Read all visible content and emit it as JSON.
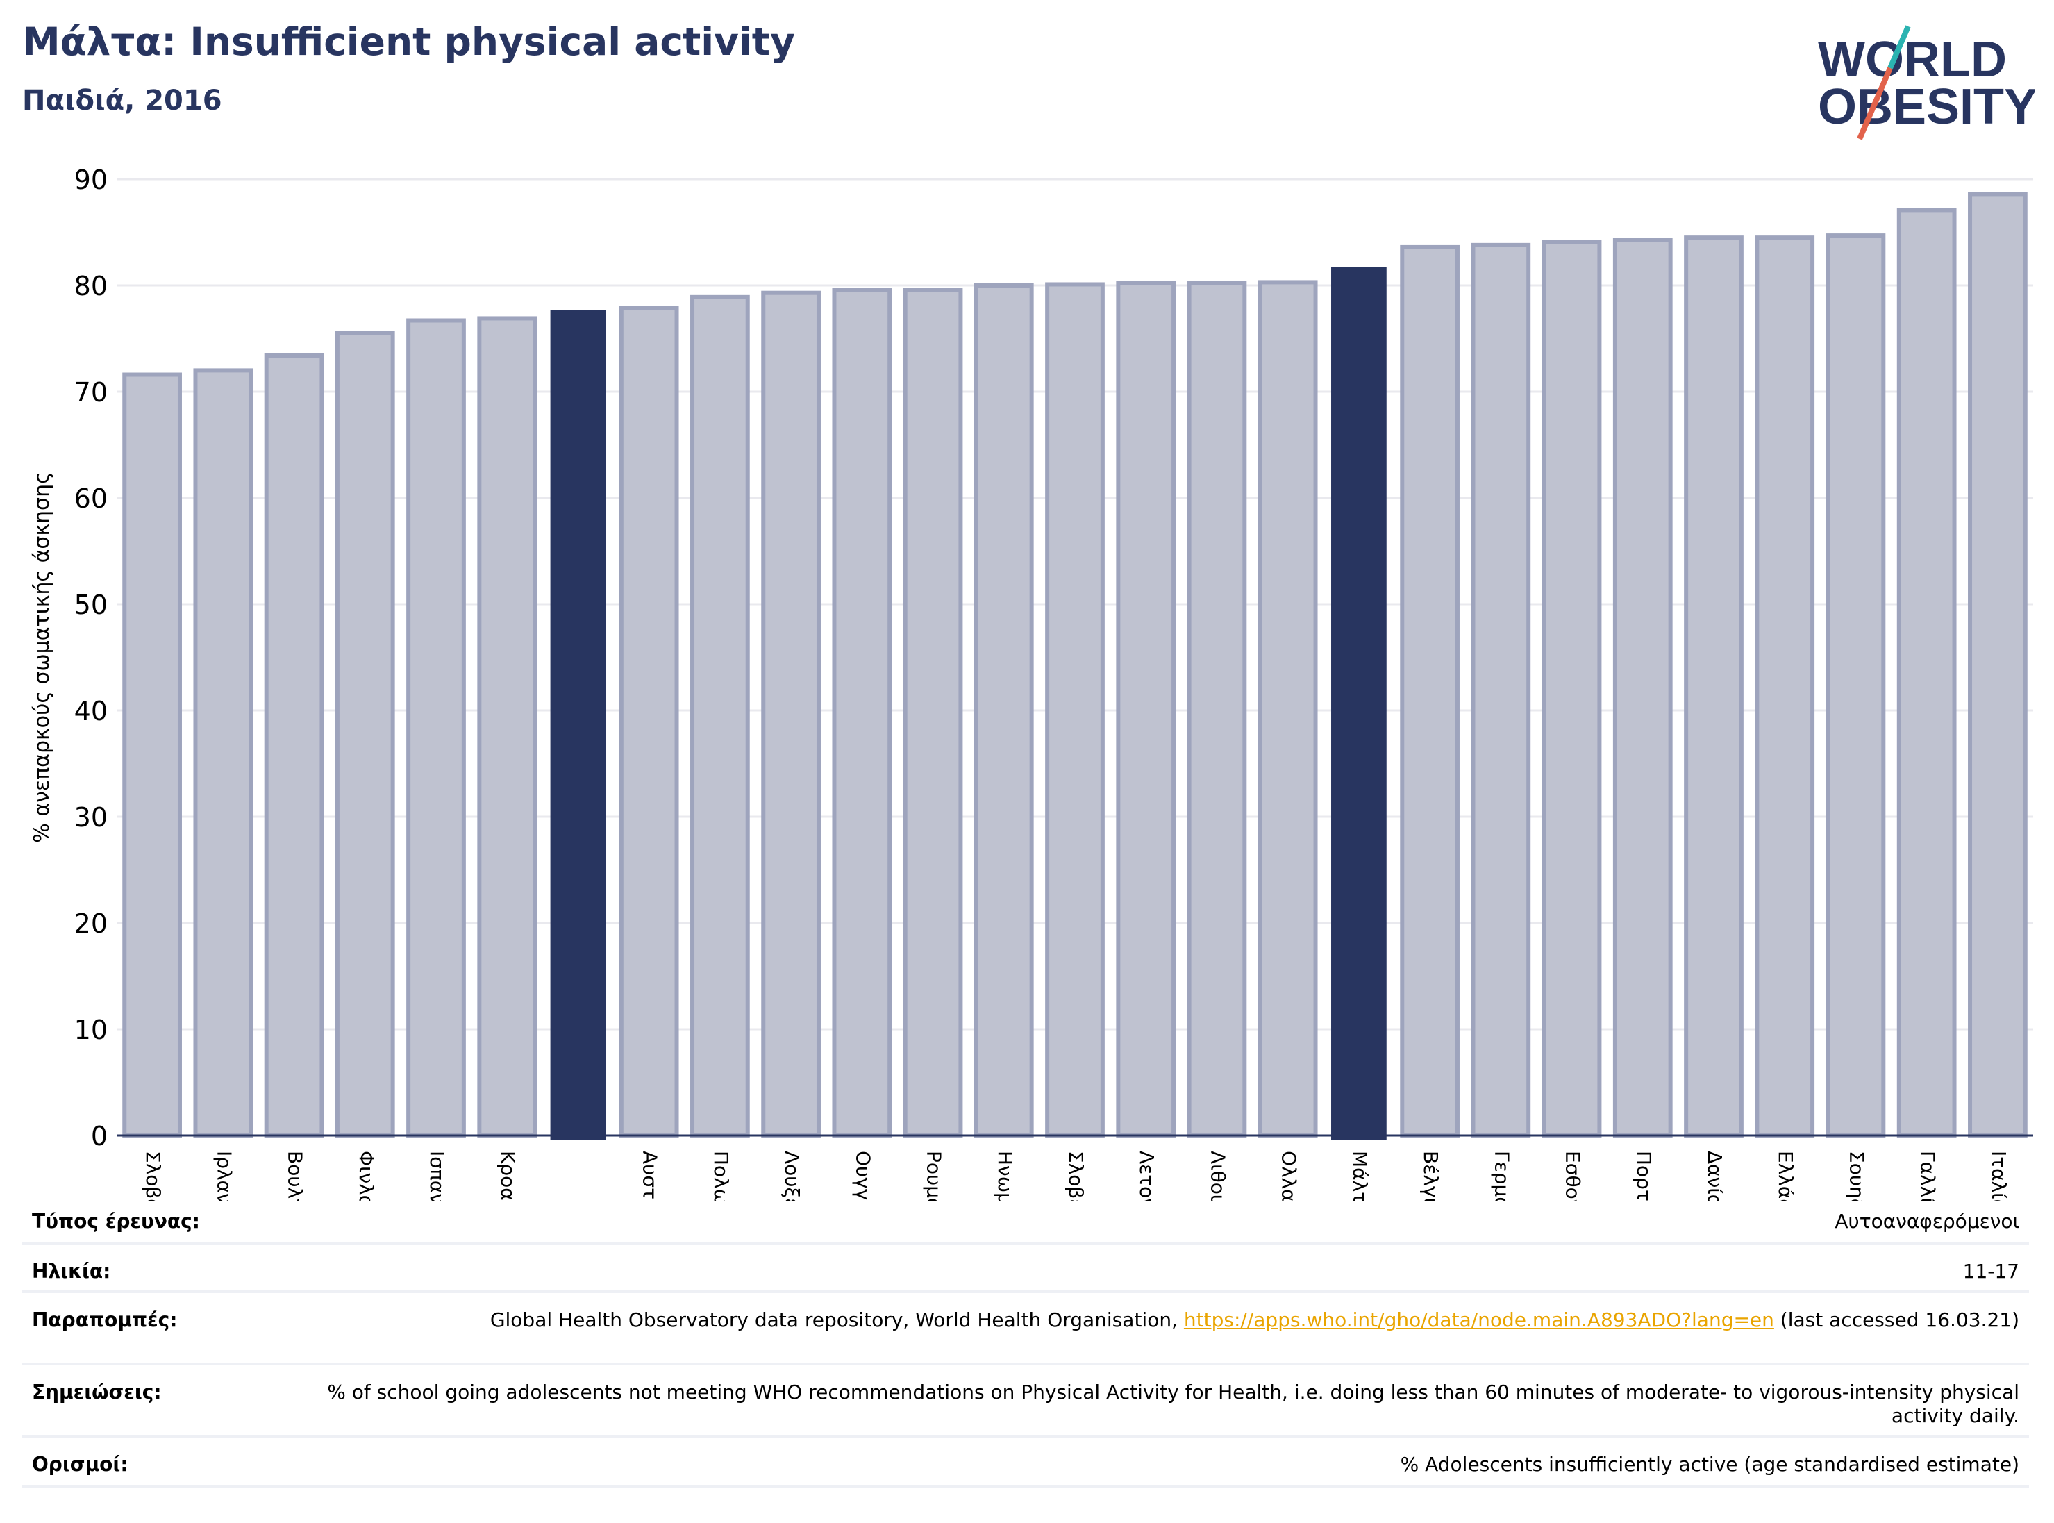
{
  "header": {
    "title": "Μάλτα: Insufficient physical activity",
    "subtitle": "Παιδιά, 2016"
  },
  "logo": {
    "line1": "WORLD",
    "line2": "OBESITY"
  },
  "colors": {
    "highlight": "#283560",
    "bar": "#bfc2d0",
    "bar_edge": "#9ea4bd",
    "grid": "#e9e9ee",
    "link": "#e9a400"
  },
  "chart_data": {
    "type": "bar",
    "ylabel": "% ανεπαρκούς σωματικής άσκησης",
    "ylim": [
      0,
      90
    ],
    "yticks": [
      0,
      10,
      20,
      30,
      40,
      50,
      60,
      70,
      80,
      90
    ],
    "grid": true,
    "categories": [
      "Σλοβακία",
      "Ιρλανδία",
      "Βουλγαρία",
      "Φινλανδία",
      "Ισπανία",
      "Κροατία",
      "",
      "Αυστρία",
      "Πολωνία",
      "Λουξεμβούργο",
      "Ουγγαρία",
      "Ρουμανία",
      "Ηνωμένο Βασίλειο",
      "Σλοβενία",
      "Λετονία",
      "Λιθουανία",
      "Ολλανδία",
      "Μάλτα",
      "Βέλγιο",
      "Γερμανία",
      "Εσθονία",
      "Πορτογαλία",
      "Δανία",
      "Ελλάδα",
      "Σουηδία",
      "Γαλλία",
      "Ιταλία"
    ],
    "values": [
      71.6,
      72.0,
      73.4,
      75.5,
      76.7,
      76.9,
      77.7,
      77.9,
      78.9,
      79.3,
      79.6,
      79.6,
      80.0,
      80.1,
      80.2,
      80.2,
      80.3,
      81.7,
      83.6,
      83.8,
      84.1,
      84.3,
      84.5,
      84.5,
      84.7,
      87.1,
      88.6
    ],
    "highlighted": [
      false,
      false,
      false,
      false,
      false,
      false,
      true,
      false,
      false,
      false,
      false,
      false,
      false,
      false,
      false,
      false,
      false,
      true,
      false,
      false,
      false,
      false,
      false,
      false,
      false,
      false,
      false
    ]
  },
  "meta": {
    "survey_type": {
      "key": "Τύπος έρευνας:",
      "value": "Αυτοαναφερόμενοι"
    },
    "age": {
      "key": "Ηλικία:",
      "value": "11-17"
    },
    "references": {
      "key": "Παραπομπές:",
      "prefix": "Global Health Observatory data repository, World Health Organisation, ",
      "link": "https://apps.who.int/gho/data/node.main.A893ADO?lang=en",
      "suffix": " (last accessed 16.03.21)"
    },
    "notes": {
      "key": "Σημειώσεις:",
      "value": "% of school going adolescents not meeting WHO recommendations on Physical Activity for Health, i.e. doing less than 60 minutes of moderate- to vigorous-intensity physical activity daily."
    },
    "definitions": {
      "key": "Ορισμοί:",
      "value": "% Adolescents insufficiently active (age standardised estimate)"
    }
  }
}
